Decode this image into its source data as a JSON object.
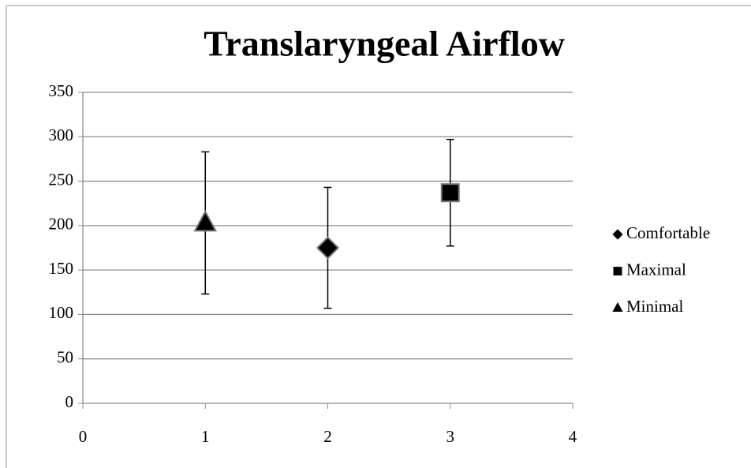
{
  "chart_data": {
    "type": "scatter",
    "title": "Translaryngeal Airflow",
    "series": [
      {
        "name": "Comfortable",
        "color": "#000000",
        "marker": "diamond",
        "x": [
          2
        ],
        "values": [
          175
        ],
        "errors": [
          68
        ]
      },
      {
        "name": "Maximal",
        "color": "#000000",
        "marker": "square",
        "x": [
          3
        ],
        "values": [
          237
        ],
        "errors": [
          60
        ]
      },
      {
        "name": "Minimal",
        "color": "#000000",
        "marker": "triangle",
        "x": [
          1
        ],
        "values": [
          203
        ],
        "errors": [
          80
        ]
      }
    ],
    "xlim": [
      0,
      4
    ],
    "xticks": [
      0,
      1,
      2,
      3,
      4
    ],
    "ylim": [
      0,
      350
    ],
    "yticks": [
      0,
      50,
      100,
      150,
      200,
      250,
      300,
      350
    ],
    "grid": true,
    "legend": "right"
  }
}
